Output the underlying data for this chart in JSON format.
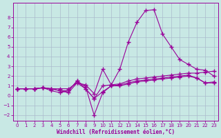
{
  "xlabel": "Windchill (Refroidissement éolien,°C)",
  "bg_color": "#c8e8e4",
  "line_color": "#990099",
  "xlim_min": -0.5,
  "xlim_max": 23.5,
  "ylim_min": -2.6,
  "ylim_max": 9.5,
  "yticks": [
    -2,
    -1,
    0,
    1,
    2,
    3,
    4,
    5,
    6,
    7,
    8
  ],
  "xticks": [
    0,
    1,
    2,
    3,
    4,
    5,
    6,
    7,
    8,
    9,
    10,
    11,
    12,
    13,
    14,
    15,
    16,
    17,
    18,
    19,
    20,
    21,
    22,
    23
  ],
  "grid_color": "#aabbcc",
  "series": [
    [
      0.7,
      0.7,
      0.7,
      0.8,
      0.7,
      0.7,
      0.7,
      1.3,
      1.1,
      0.2,
      2.7,
      1.1,
      2.7,
      5.5,
      7.5,
      8.7,
      8.8,
      6.3,
      5.0,
      3.7,
      3.2,
      2.7,
      2.6,
      2.0
    ],
    [
      0.7,
      0.7,
      0.7,
      0.8,
      0.7,
      0.5,
      0.5,
      1.5,
      0.7,
      -0.3,
      1.0,
      1.1,
      1.2,
      1.5,
      1.7,
      1.8,
      1.9,
      2.0,
      2.1,
      2.2,
      2.3,
      2.3,
      2.4,
      2.5
    ],
    [
      0.7,
      0.7,
      0.7,
      0.8,
      0.5,
      0.3,
      0.5,
      1.5,
      0.9,
      -2.0,
      0.3,
      1.0,
      1.1,
      1.3,
      1.5,
      1.6,
      1.7,
      1.8,
      1.9,
      2.0,
      2.1,
      1.8,
      1.3,
      1.4
    ],
    [
      0.7,
      0.7,
      0.7,
      0.8,
      0.7,
      0.5,
      0.3,
      1.3,
      0.7,
      -0.3,
      0.4,
      1.0,
      1.0,
      1.2,
      1.4,
      1.5,
      1.6,
      1.7,
      1.8,
      1.9,
      2.0,
      1.8,
      1.3,
      1.3
    ]
  ]
}
